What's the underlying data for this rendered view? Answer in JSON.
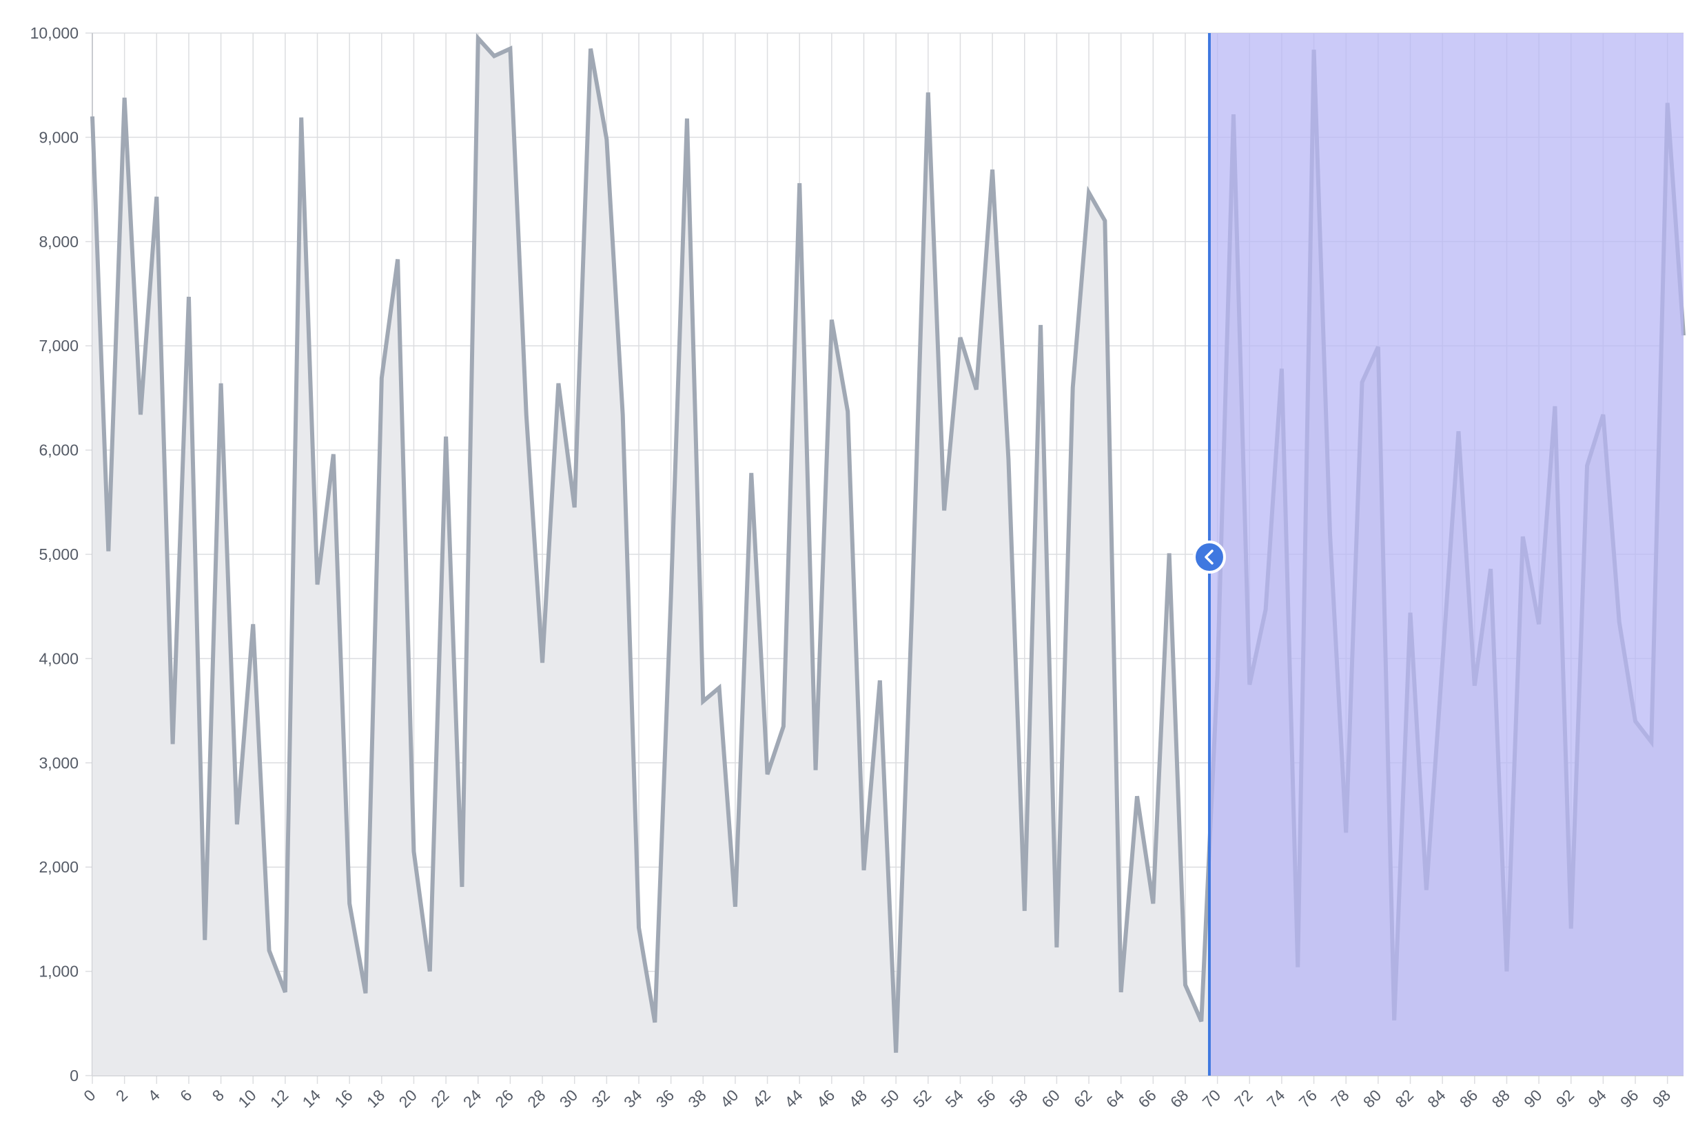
{
  "chart_data": {
    "type": "area",
    "title": "",
    "xlabel": "",
    "ylabel": "",
    "x": [
      0,
      1,
      2,
      3,
      4,
      5,
      6,
      7,
      8,
      9,
      10,
      11,
      12,
      13,
      14,
      15,
      16,
      17,
      18,
      19,
      20,
      21,
      22,
      23,
      24,
      25,
      26,
      27,
      28,
      29,
      30,
      31,
      32,
      33,
      34,
      35,
      36,
      37,
      38,
      39,
      40,
      41,
      42,
      43,
      44,
      45,
      46,
      47,
      48,
      49,
      50,
      51,
      52,
      53,
      54,
      55,
      56,
      57,
      58,
      59,
      60,
      61,
      62,
      63,
      64,
      65,
      66,
      67,
      68,
      69,
      70,
      71,
      72,
      73,
      74,
      75,
      76,
      77,
      78,
      79,
      80,
      81,
      82,
      83,
      84,
      85,
      86,
      87,
      88,
      89,
      90,
      91,
      92,
      93,
      94,
      95,
      96,
      97,
      98,
      99
    ],
    "series": [
      {
        "values": [
          9200,
          5030,
          9380,
          6340,
          8430,
          3180,
          7470,
          1300,
          6640,
          2410,
          4330,
          1200,
          800,
          9190,
          4710,
          5960,
          1650,
          790,
          6690,
          7830,
          2150,
          1000,
          6130,
          1810,
          9950,
          9780,
          9850,
          6340,
          3960,
          6640,
          5450,
          9850,
          8980,
          6340,
          1420,
          510,
          4600,
          9180,
          3590,
          3720,
          1620,
          5780,
          2890,
          3350,
          8560,
          2930,
          7250,
          6370,
          1970,
          3790,
          220,
          4500,
          9430,
          5420,
          7080,
          6580,
          8690,
          5910,
          1580,
          7200,
          1230,
          6600,
          8470,
          8200,
          800,
          2680,
          1650,
          5010,
          870,
          520,
          3840,
          9220,
          3750,
          4470,
          6780,
          1040,
          9840,
          5210,
          2330,
          6650,
          6990,
          530,
          4440,
          1780,
          3960,
          6180,
          3740,
          4860,
          1000,
          5170,
          4330,
          6420,
          1410,
          5850,
          6340,
          4350,
          3400,
          3200,
          9330,
          7100
        ]
      }
    ],
    "ylim": [
      0,
      10000
    ],
    "y_ticks": [
      "0",
      "1,000",
      "2,000",
      "3,000",
      "4,000",
      "5,000",
      "6,000",
      "7,000",
      "8,000",
      "9,000",
      "10,000"
    ],
    "y_tick_values": [
      0,
      1000,
      2000,
      3000,
      4000,
      5000,
      6000,
      7000,
      8000,
      9000,
      10000
    ],
    "x_tick_labels": [
      "0",
      "2",
      "4",
      "6",
      "8",
      "10",
      "12",
      "14",
      "16",
      "18",
      "20",
      "22",
      "24",
      "26",
      "28",
      "30",
      "32",
      "34",
      "36",
      "38",
      "40",
      "42",
      "44",
      "46",
      "48",
      "50",
      "52",
      "54",
      "56",
      "58",
      "60",
      "62",
      "64",
      "66",
      "68",
      "70",
      "72",
      "74",
      "76",
      "78",
      "80",
      "82",
      "84",
      "86",
      "88",
      "90",
      "92",
      "94",
      "96",
      "98"
    ],
    "x_tick_values": [
      0,
      2,
      4,
      6,
      8,
      10,
      12,
      14,
      16,
      18,
      20,
      22,
      24,
      26,
      28,
      30,
      32,
      34,
      36,
      38,
      40,
      42,
      44,
      46,
      48,
      50,
      52,
      54,
      56,
      58,
      60,
      62,
      64,
      66,
      68,
      70,
      72,
      74,
      76,
      78,
      80,
      82,
      84,
      86,
      88,
      90,
      92,
      94,
      96,
      98
    ],
    "grid": true,
    "selection": {
      "start": 69.5,
      "end": 99
    },
    "colors": {
      "line": "#a0a8b4",
      "area": "#e9eaed",
      "grid": "#dcdde0",
      "selection": "#b7b5f5",
      "handle": "#3f78e0",
      "tick_text": "#555b66"
    }
  }
}
